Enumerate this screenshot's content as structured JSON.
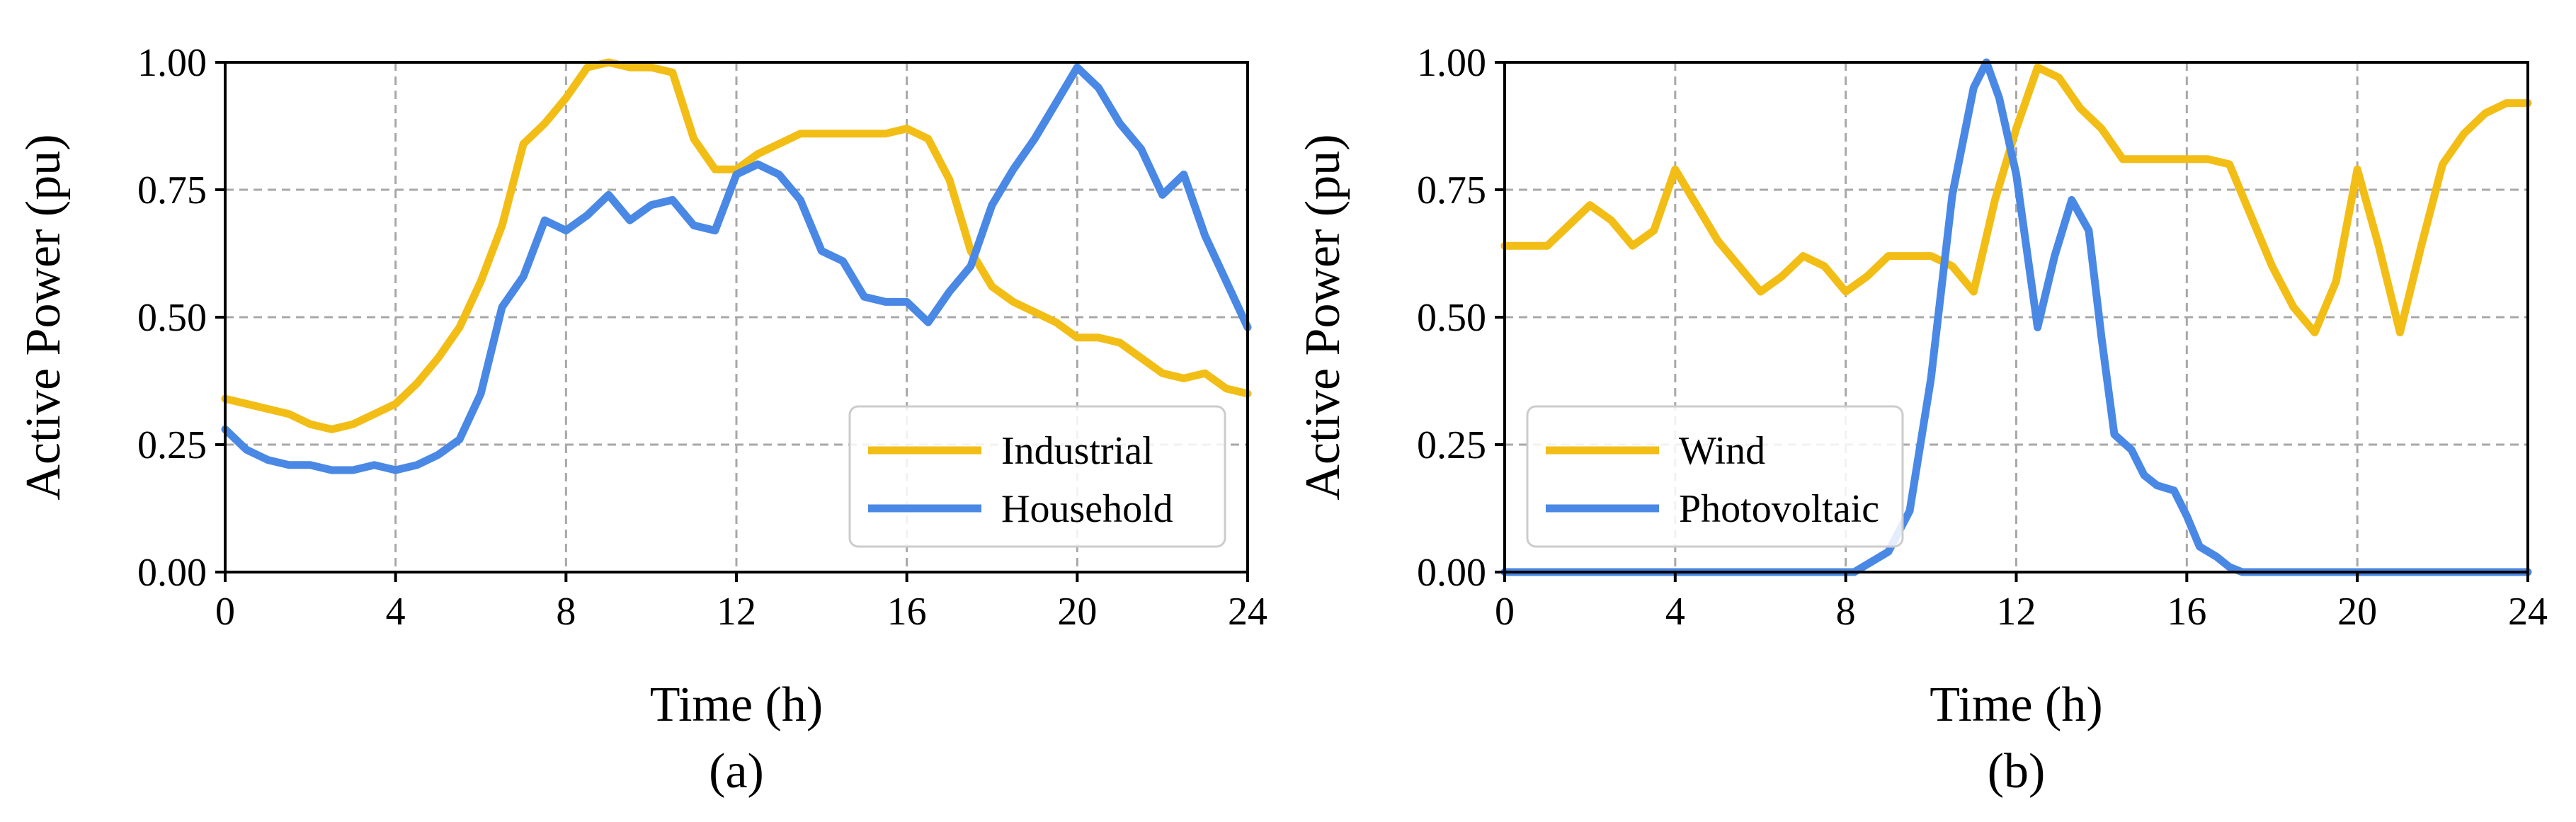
{
  "chart_data": [
    {
      "type": "line",
      "subtitle": "(a)",
      "xlabel": "Time (h)",
      "ylabel": "Active Power (pu)",
      "xlim": [
        0,
        24
      ],
      "ylim": [
        0,
        1
      ],
      "xticks": [
        0,
        4,
        8,
        12,
        16,
        20,
        24
      ],
      "xtick_labels": [
        "0",
        "4",
        "8",
        "12",
        "16",
        "20",
        "24"
      ],
      "yticks": [
        0,
        0.25,
        0.5,
        0.75,
        1
      ],
      "ytick_labels": [
        "0.00",
        "0.25",
        "0.50",
        "0.75",
        "1.00"
      ],
      "grid": true,
      "legend_position": "lower-right",
      "series": [
        {
          "name": "Industrial",
          "color": "#F2BE16",
          "x": [
            0,
            0.5,
            1,
            1.5,
            2,
            2.5,
            3,
            3.5,
            4,
            4.5,
            5,
            5.5,
            6,
            6.5,
            7,
            7.5,
            8,
            8.5,
            9,
            9.5,
            10,
            10.5,
            11,
            11.5,
            12,
            12.5,
            13,
            13.5,
            14,
            14.5,
            15,
            15.5,
            16,
            16.5,
            17,
            17.5,
            18,
            18.5,
            19,
            19.5,
            20,
            20.5,
            21,
            21.5,
            22,
            22.5,
            23,
            23.5,
            24
          ],
          "y": [
            0.34,
            0.33,
            0.32,
            0.31,
            0.29,
            0.28,
            0.29,
            0.31,
            0.33,
            0.37,
            0.42,
            0.48,
            0.57,
            0.68,
            0.84,
            0.88,
            0.93,
            0.99,
            1.0,
            0.99,
            0.99,
            0.98,
            0.85,
            0.79,
            0.79,
            0.82,
            0.84,
            0.86,
            0.86,
            0.86,
            0.86,
            0.86,
            0.87,
            0.85,
            0.77,
            0.63,
            0.56,
            0.53,
            0.51,
            0.49,
            0.46,
            0.46,
            0.45,
            0.42,
            0.39,
            0.38,
            0.39,
            0.36,
            0.35
          ]
        },
        {
          "name": "Household",
          "color": "#4A88E5",
          "x": [
            0,
            0.5,
            1,
            1.5,
            2,
            2.5,
            3,
            3.5,
            4,
            4.5,
            5,
            5.5,
            6,
            6.5,
            7,
            7.5,
            8,
            8.5,
            9,
            9.5,
            10,
            10.5,
            11,
            11.5,
            12,
            12.5,
            13,
            13.5,
            14,
            14.5,
            15,
            15.5,
            16,
            16.5,
            17,
            17.5,
            18,
            18.5,
            19,
            19.5,
            20,
            20.5,
            21,
            21.5,
            22,
            22.5,
            23,
            23.5,
            24
          ],
          "y": [
            0.28,
            0.24,
            0.22,
            0.21,
            0.21,
            0.2,
            0.2,
            0.21,
            0.2,
            0.21,
            0.23,
            0.26,
            0.35,
            0.52,
            0.58,
            0.69,
            0.67,
            0.7,
            0.74,
            0.69,
            0.72,
            0.73,
            0.68,
            0.67,
            0.78,
            0.8,
            0.78,
            0.73,
            0.63,
            0.61,
            0.54,
            0.53,
            0.53,
            0.49,
            0.55,
            0.6,
            0.72,
            0.79,
            0.85,
            0.92,
            0.99,
            0.95,
            0.88,
            0.83,
            0.74,
            0.78,
            0.66,
            0.57,
            0.48
          ]
        }
      ]
    },
    {
      "type": "line",
      "subtitle": "(b)",
      "xlabel": "Time (h)",
      "ylabel": "Active Power (pu)",
      "xlim": [
        0,
        24
      ],
      "ylim": [
        0,
        1
      ],
      "xticks": [
        0,
        4,
        8,
        12,
        16,
        20,
        24
      ],
      "xtick_labels": [
        "0",
        "4",
        "8",
        "12",
        "16",
        "20",
        "24"
      ],
      "yticks": [
        0,
        0.25,
        0.5,
        0.75,
        1
      ],
      "ytick_labels": [
        "0.00",
        "0.25",
        "0.50",
        "0.75",
        "1.00"
      ],
      "grid": true,
      "legend_position": "lower-left",
      "series": [
        {
          "name": "Wind",
          "color": "#F2BE16",
          "x": [
            0,
            0.5,
            1,
            1.5,
            2,
            2.5,
            3,
            3.5,
            4,
            4.5,
            5,
            5.5,
            6,
            6.5,
            7,
            7.5,
            8,
            8.5,
            9,
            9.5,
            10,
            10.5,
            11,
            11.5,
            12,
            12.5,
            13,
            13.5,
            14,
            14.5,
            15,
            15.5,
            16,
            16.5,
            17,
            17.5,
            18,
            18.5,
            19,
            19.5,
            20,
            20.5,
            21,
            21.5,
            22,
            22.5,
            23,
            23.5,
            24
          ],
          "y": [
            0.64,
            0.64,
            0.64,
            0.68,
            0.72,
            0.69,
            0.64,
            0.67,
            0.79,
            0.72,
            0.65,
            0.6,
            0.55,
            0.58,
            0.62,
            0.6,
            0.55,
            0.58,
            0.62,
            0.62,
            0.62,
            0.6,
            0.55,
            0.73,
            0.87,
            0.99,
            0.97,
            0.91,
            0.87,
            0.81,
            0.81,
            0.81,
            0.81,
            0.81,
            0.8,
            0.7,
            0.6,
            0.52,
            0.47,
            0.57,
            0.79,
            0.64,
            0.47,
            0.64,
            0.8,
            0.86,
            0.9,
            0.92,
            0.92
          ]
        },
        {
          "name": "Photovoltaic",
          "color": "#4A88E5",
          "x": [
            0,
            8.2,
            9,
            9.5,
            10,
            10.5,
            11,
            11.3,
            11.6,
            12,
            12.5,
            12.9,
            13.3,
            13.7,
            14,
            14.3,
            14.7,
            15,
            15.3,
            15.7,
            16,
            16.3,
            16.7,
            17,
            17.3,
            24
          ],
          "y": [
            0,
            0,
            0.04,
            0.12,
            0.38,
            0.74,
            0.95,
            1.0,
            0.93,
            0.78,
            0.48,
            0.62,
            0.73,
            0.67,
            0.46,
            0.27,
            0.24,
            0.19,
            0.17,
            0.16,
            0.11,
            0.05,
            0.03,
            0.01,
            0,
            0
          ]
        }
      ]
    }
  ]
}
